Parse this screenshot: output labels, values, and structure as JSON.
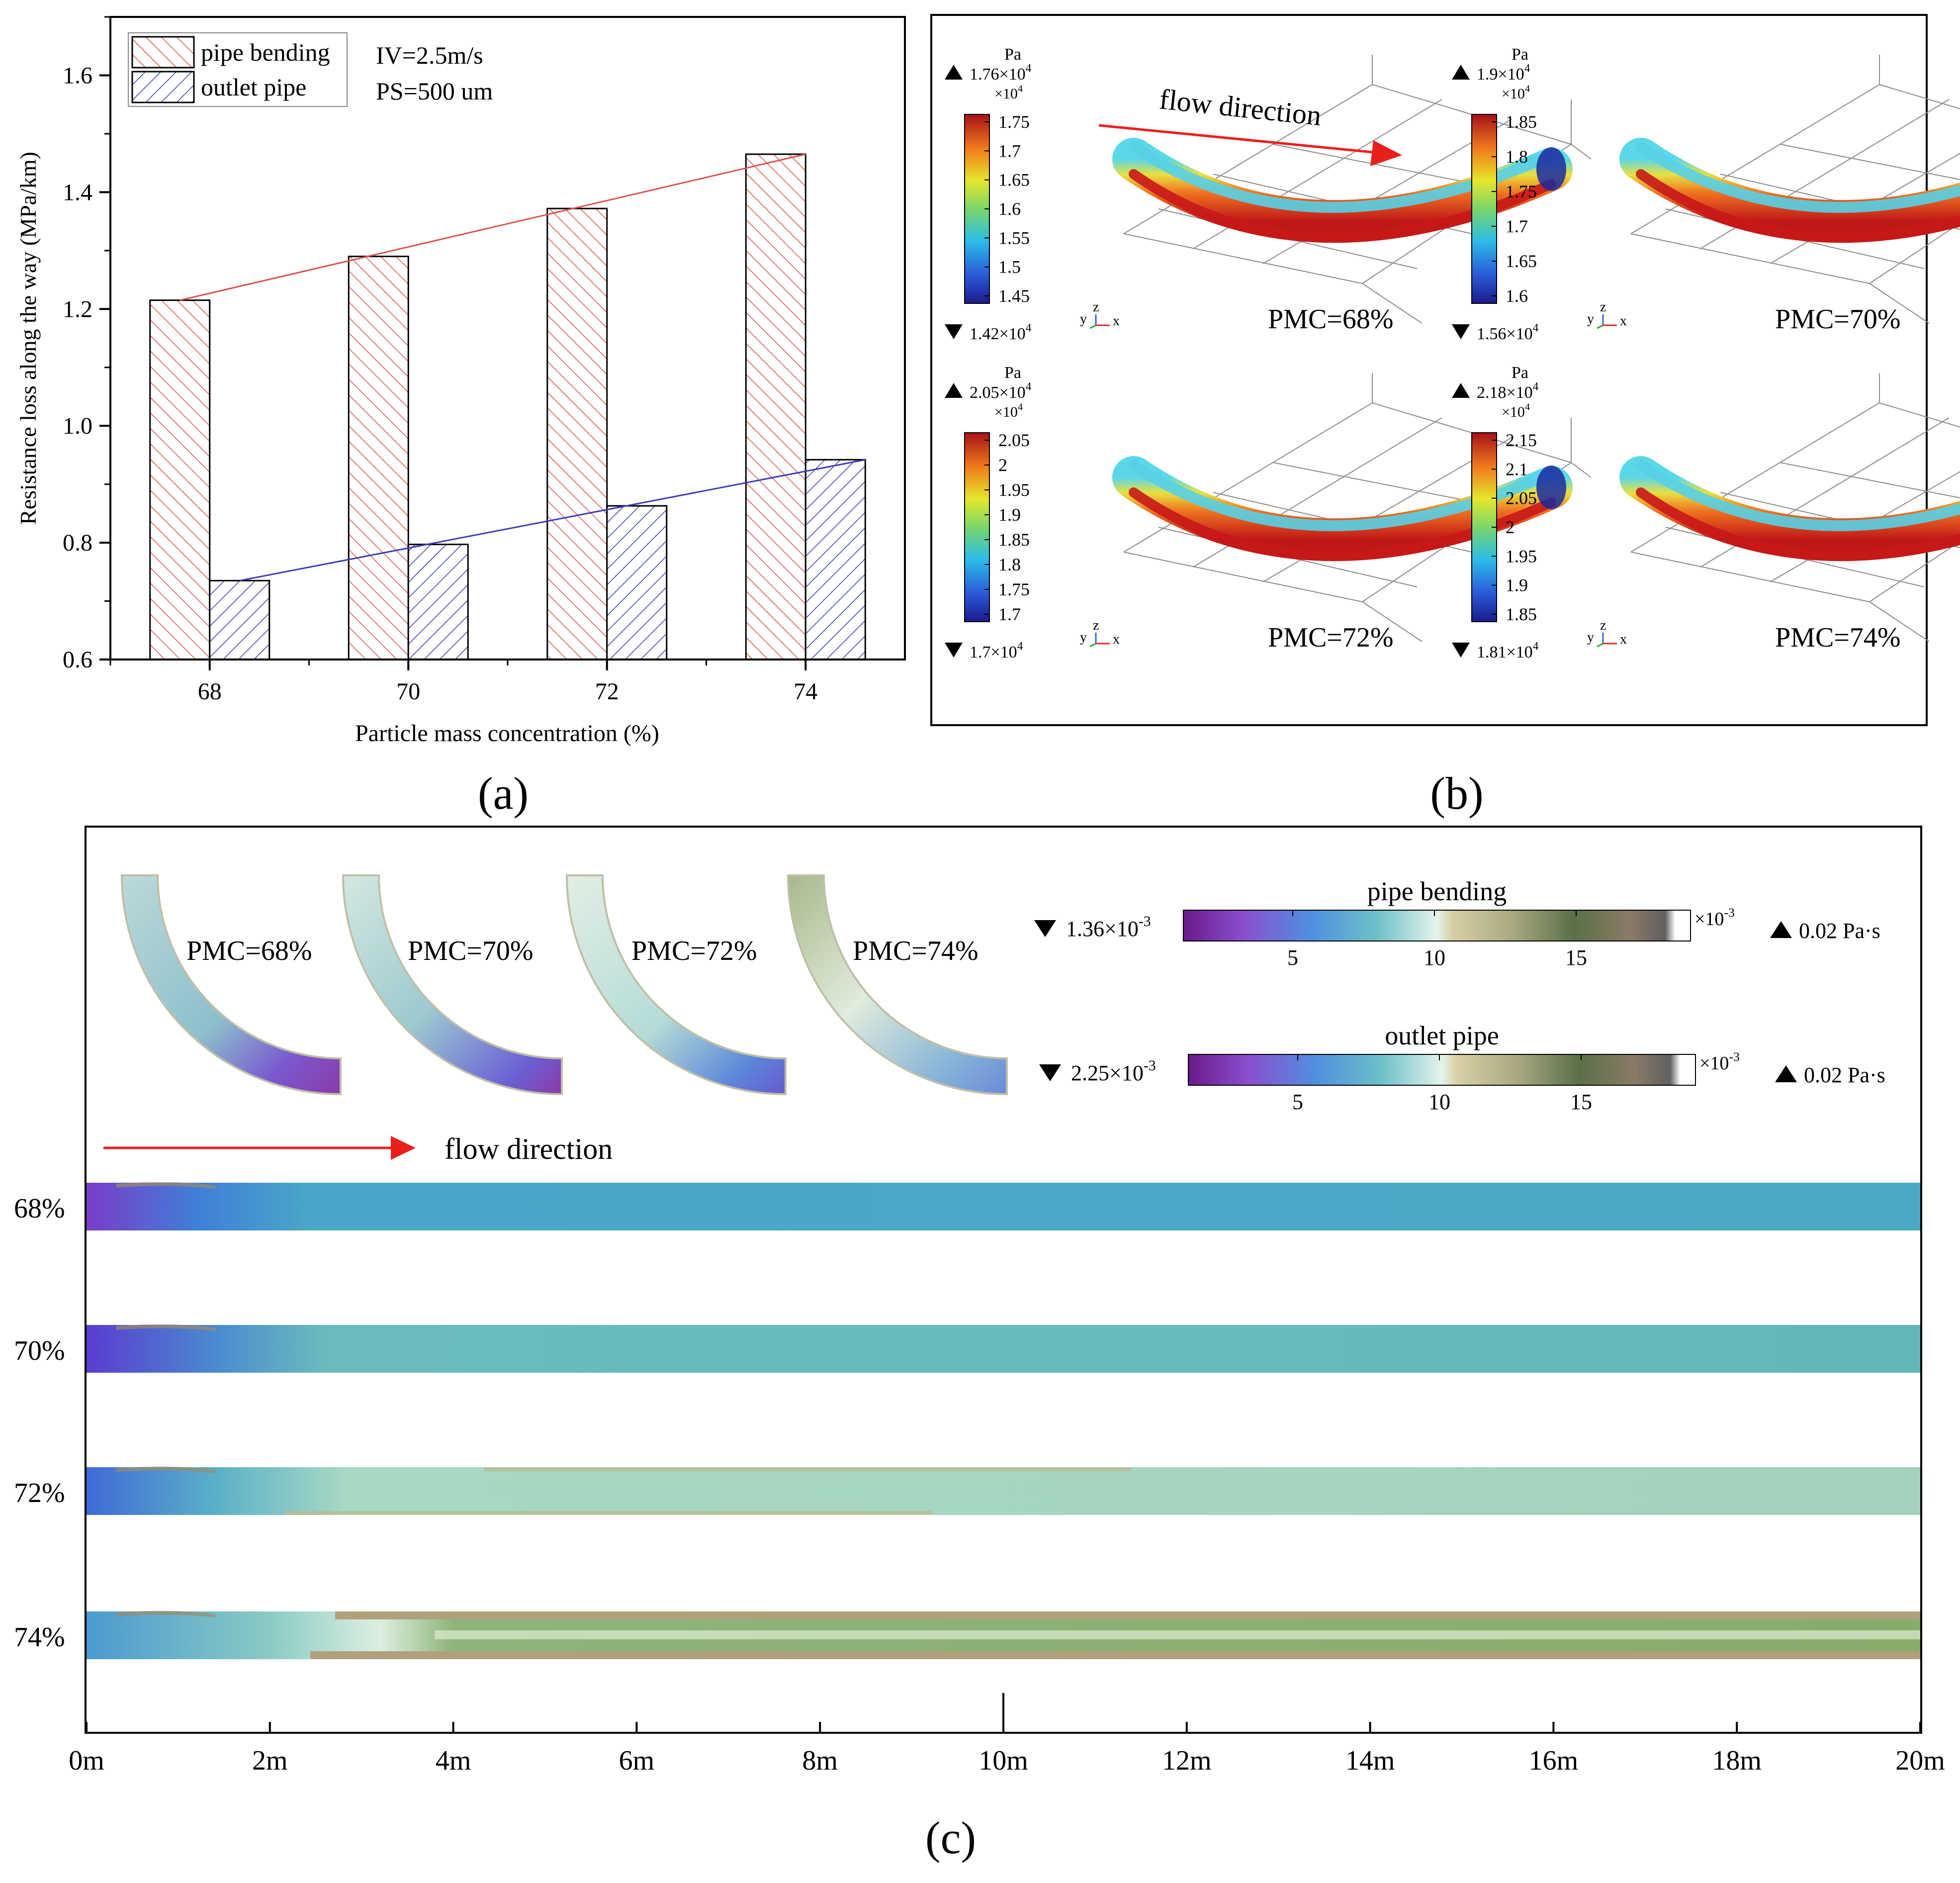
{
  "panel_labels": {
    "a": "(a)",
    "b": "(b)",
    "c": "(c)"
  },
  "panel_a": {
    "annotations": {
      "iv": "IV=2.5m/s",
      "ps": "PS=500 um"
    },
    "colors": {
      "pipe_bending": "#d9534f",
      "outlet_pipe": "#3c3cb4"
    }
  },
  "chart_data": [
    {
      "type": "bar",
      "title": "",
      "xlabel": "Particle mass concentration (%)",
      "ylabel": "Resistance loss along the way (MPa/km)",
      "categories": [
        "68",
        "70",
        "72",
        "74"
      ],
      "series": [
        {
          "name": "pipe bending",
          "values": [
            1.215,
            1.29,
            1.372,
            1.465
          ]
        },
        {
          "name": "outlet pipe",
          "values": [
            0.735,
            0.797,
            0.863,
            0.942
          ]
        }
      ],
      "ylim": [
        0.6,
        1.7
      ],
      "yticks": [
        "0.6",
        "0.8",
        "1.0",
        "1.2",
        "1.4",
        "1.6"
      ],
      "legend": "top-left",
      "grid": false
    }
  ],
  "panel_b": {
    "unit": "Pa",
    "flow_label": "flow direction",
    "triad": {
      "y": "y",
      "z": "z",
      "x": "x"
    },
    "cases": [
      {
        "label": "PMC=68%",
        "max": "1.76×10",
        "min": "1.42×10",
        "exp": "4",
        "mult": "×10",
        "ticks": [
          "1.75",
          "1.7",
          "1.65",
          "1.6",
          "1.55",
          "1.5",
          "1.45"
        ]
      },
      {
        "label": "PMC=70%",
        "max": "1.9×10",
        "min": "1.56×10",
        "exp": "4",
        "mult": "×10",
        "ticks": [
          "1.85",
          "1.8",
          "1.75",
          "1.7",
          "1.65",
          "1.6"
        ]
      },
      {
        "label": "PMC=72%",
        "max": "2.05×10",
        "min": "1.7×10",
        "exp": "4",
        "mult": "×10",
        "ticks": [
          "2.05",
          "2",
          "1.95",
          "1.9",
          "1.85",
          "1.8",
          "1.75",
          "1.7"
        ]
      },
      {
        "label": "PMC=74%",
        "max": "2.18×10",
        "min": "1.81×10",
        "exp": "4",
        "mult": "×10",
        "ticks": [
          "2.15",
          "2.1",
          "2.05",
          "2",
          "1.95",
          "1.9",
          "1.85"
        ]
      }
    ]
  },
  "panel_c": {
    "elbows": [
      "PMC=68%",
      "PMC=70%",
      "PMC=72%",
      "PMC=74%"
    ],
    "colorbars": [
      {
        "title": "pipe bending",
        "min": "1.36×10",
        "min_exp": "-3",
        "max": "0.02",
        "unit": "Pa·s",
        "mult": "×10",
        "mult_exp": "-3",
        "ticks": [
          "5",
          "10",
          "15"
        ]
      },
      {
        "title": "outlet pipe",
        "min": "2.25×10",
        "min_exp": "-3",
        "max": "0.02",
        "unit": "Pa·s",
        "mult": "×10",
        "mult_exp": "-3",
        "ticks": [
          "5",
          "10",
          "15"
        ]
      }
    ],
    "flow_label": "flow direction",
    "rows": [
      "68%",
      "70%",
      "72%",
      "74%"
    ],
    "xticks": [
      "0m",
      "2m",
      "4m",
      "6m",
      "8m",
      "10m",
      "12m",
      "14m",
      "16m",
      "18m",
      "20m"
    ]
  }
}
